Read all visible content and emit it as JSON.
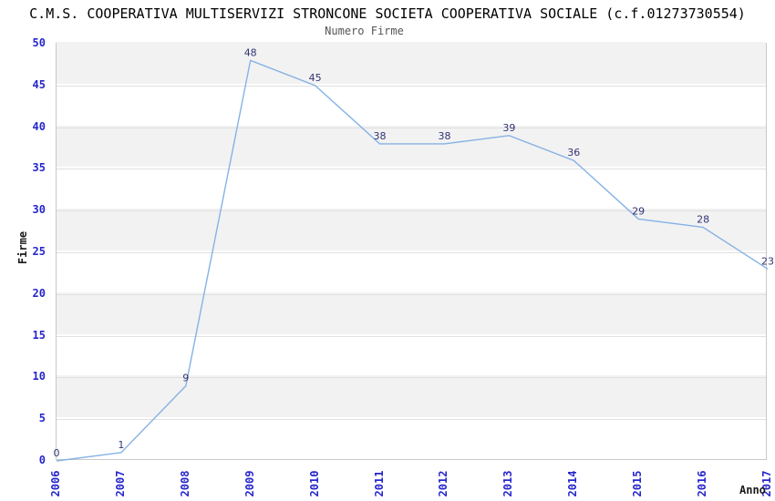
{
  "header": {
    "title": "C.M.S. COOPERATIVA MULTISERVIZI STRONCONE SOCIETA COOPERATIVA SOCIALE (c.f.01273730554)",
    "subtitle": "Numero Firme"
  },
  "axes": {
    "y_label": "Firme",
    "x_label": "Anno"
  },
  "chart_data": {
    "type": "line",
    "title": "C.M.S. COOPERATIVA MULTISERVIZI STRONCONE SOCIETA COOPERATIVA SOCIALE (c.f.01273730554)",
    "subtitle": "Numero Firme",
    "xlabel": "Anno",
    "ylabel": "Firme",
    "categories": [
      "2006",
      "2007",
      "2008",
      "2009",
      "2010",
      "2011",
      "2012",
      "2013",
      "2014",
      "2015",
      "2016",
      "2017"
    ],
    "values": [
      0,
      1,
      9,
      48,
      45,
      38,
      38,
      39,
      36,
      29,
      28,
      23
    ],
    "ylim": [
      0,
      50
    ],
    "y_ticks": [
      0,
      5,
      10,
      15,
      20,
      25,
      30,
      35,
      40,
      45,
      50
    ],
    "legend": "none",
    "grid": "horizontal-bands",
    "colors": {
      "line": "#85b2e5",
      "tick_label": "#2626cc",
      "data_label": "#333375",
      "band_gray": "#f2f2f2",
      "band_white": "#ffffff",
      "gridline": "#e0e0e0",
      "plot_border": "#c9c9c9",
      "title": "#000000",
      "subtitle": "#555555",
      "axis_title": "#1a1a1a"
    }
  }
}
